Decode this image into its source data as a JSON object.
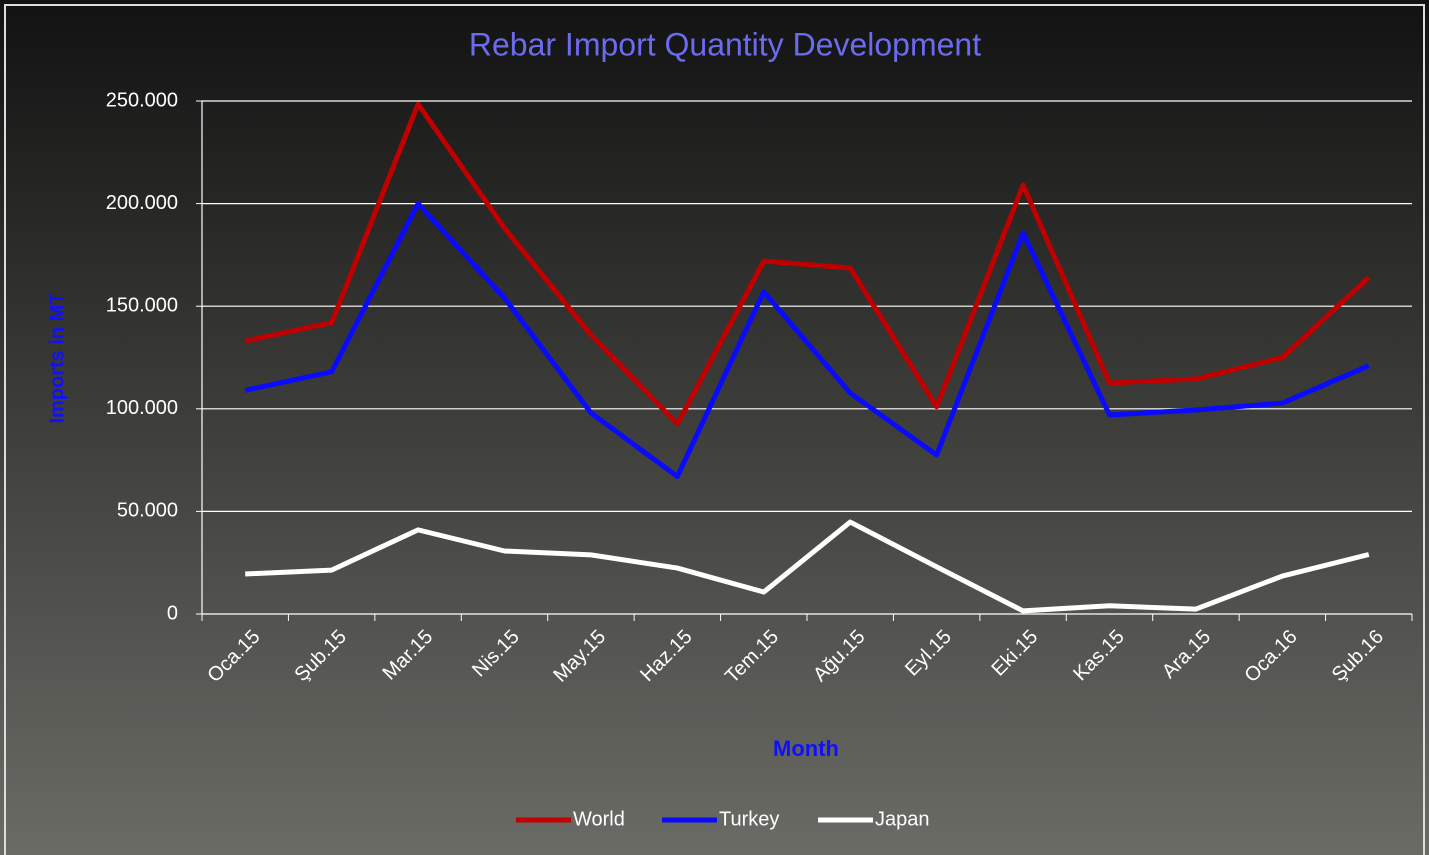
{
  "chart_data": {
    "type": "line",
    "title": "Rebar Import Quantity Development",
    "xlabel": "Month",
    "ylabel": "Imports in MT",
    "categories": [
      "Oca.15",
      "Şub.15",
      "Mar.15",
      "Nis.15",
      "May.15",
      "Haz.15",
      "Tem.15",
      "Ağu.15",
      "Eyl.15",
      "Eki.15",
      "Kas.15",
      "Ara.15",
      "Oca.16",
      "Şub.16"
    ],
    "series": [
      {
        "name": "World",
        "color": "#c00000",
        "values": [
          133000,
          142000,
          248500,
          188000,
          136000,
          92600,
          172000,
          168600,
          101000,
          209000,
          112600,
          114500,
          125000,
          164000
        ]
      },
      {
        "name": "Turkey",
        "color": "#0a0aff",
        "values": [
          109000,
          118000,
          200000,
          154000,
          98000,
          67000,
          157000,
          107700,
          77500,
          185700,
          97000,
          99400,
          102800,
          121000
        ]
      },
      {
        "name": "Japan",
        "color": "#ffffff",
        "values": [
          19500,
          21400,
          41000,
          30700,
          28800,
          22400,
          10700,
          44800,
          23000,
          1500,
          4000,
          2400,
          18500,
          29000
        ]
      }
    ],
    "ylim": [
      0,
      250000
    ],
    "yticks": [
      0,
      {
        "value": 50000,
        "label": "50.000"
      },
      {
        "value": 100000,
        "label": "100.000"
      },
      {
        "value": 150000,
        "label": "150.000"
      },
      {
        "value": 200000,
        "label": "200.000"
      },
      {
        "value": 250000,
        "label": "250.000"
      }
    ],
    "grid": true,
    "legend": "bottom"
  }
}
